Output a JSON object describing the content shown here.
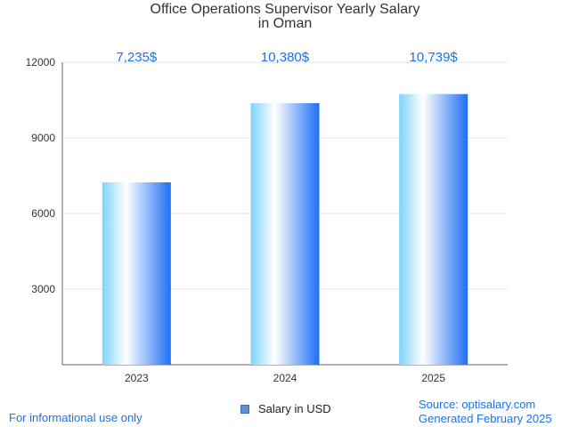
{
  "title_line1": "Office Operations Supervisor Yearly Salary",
  "title_line2": "in Oman",
  "chart_data": {
    "type": "bar",
    "categories": [
      "2023",
      "2024",
      "2025"
    ],
    "values": [
      7235,
      10380,
      10739
    ],
    "value_labels": [
      "7,235$",
      "10,380$",
      "10,739$"
    ],
    "ylim": [
      0,
      12000
    ],
    "yticks": [
      3000,
      6000,
      9000,
      12000
    ],
    "series": [
      {
        "name": "Salary in USD",
        "values": [
          7235,
          10380,
          10739
        ]
      }
    ],
    "grid": true,
    "legend_position": "bottom-center",
    "bar_colors": [
      "#7fd3ff",
      "#ffffff",
      "#1e6ef5"
    ],
    "label_color": "#1a73e8"
  },
  "legend_label": "Salary in USD",
  "footer_left": "For informational use only",
  "footer_source": "Source: optisalary.com",
  "footer_generated": "Generated February 2025"
}
